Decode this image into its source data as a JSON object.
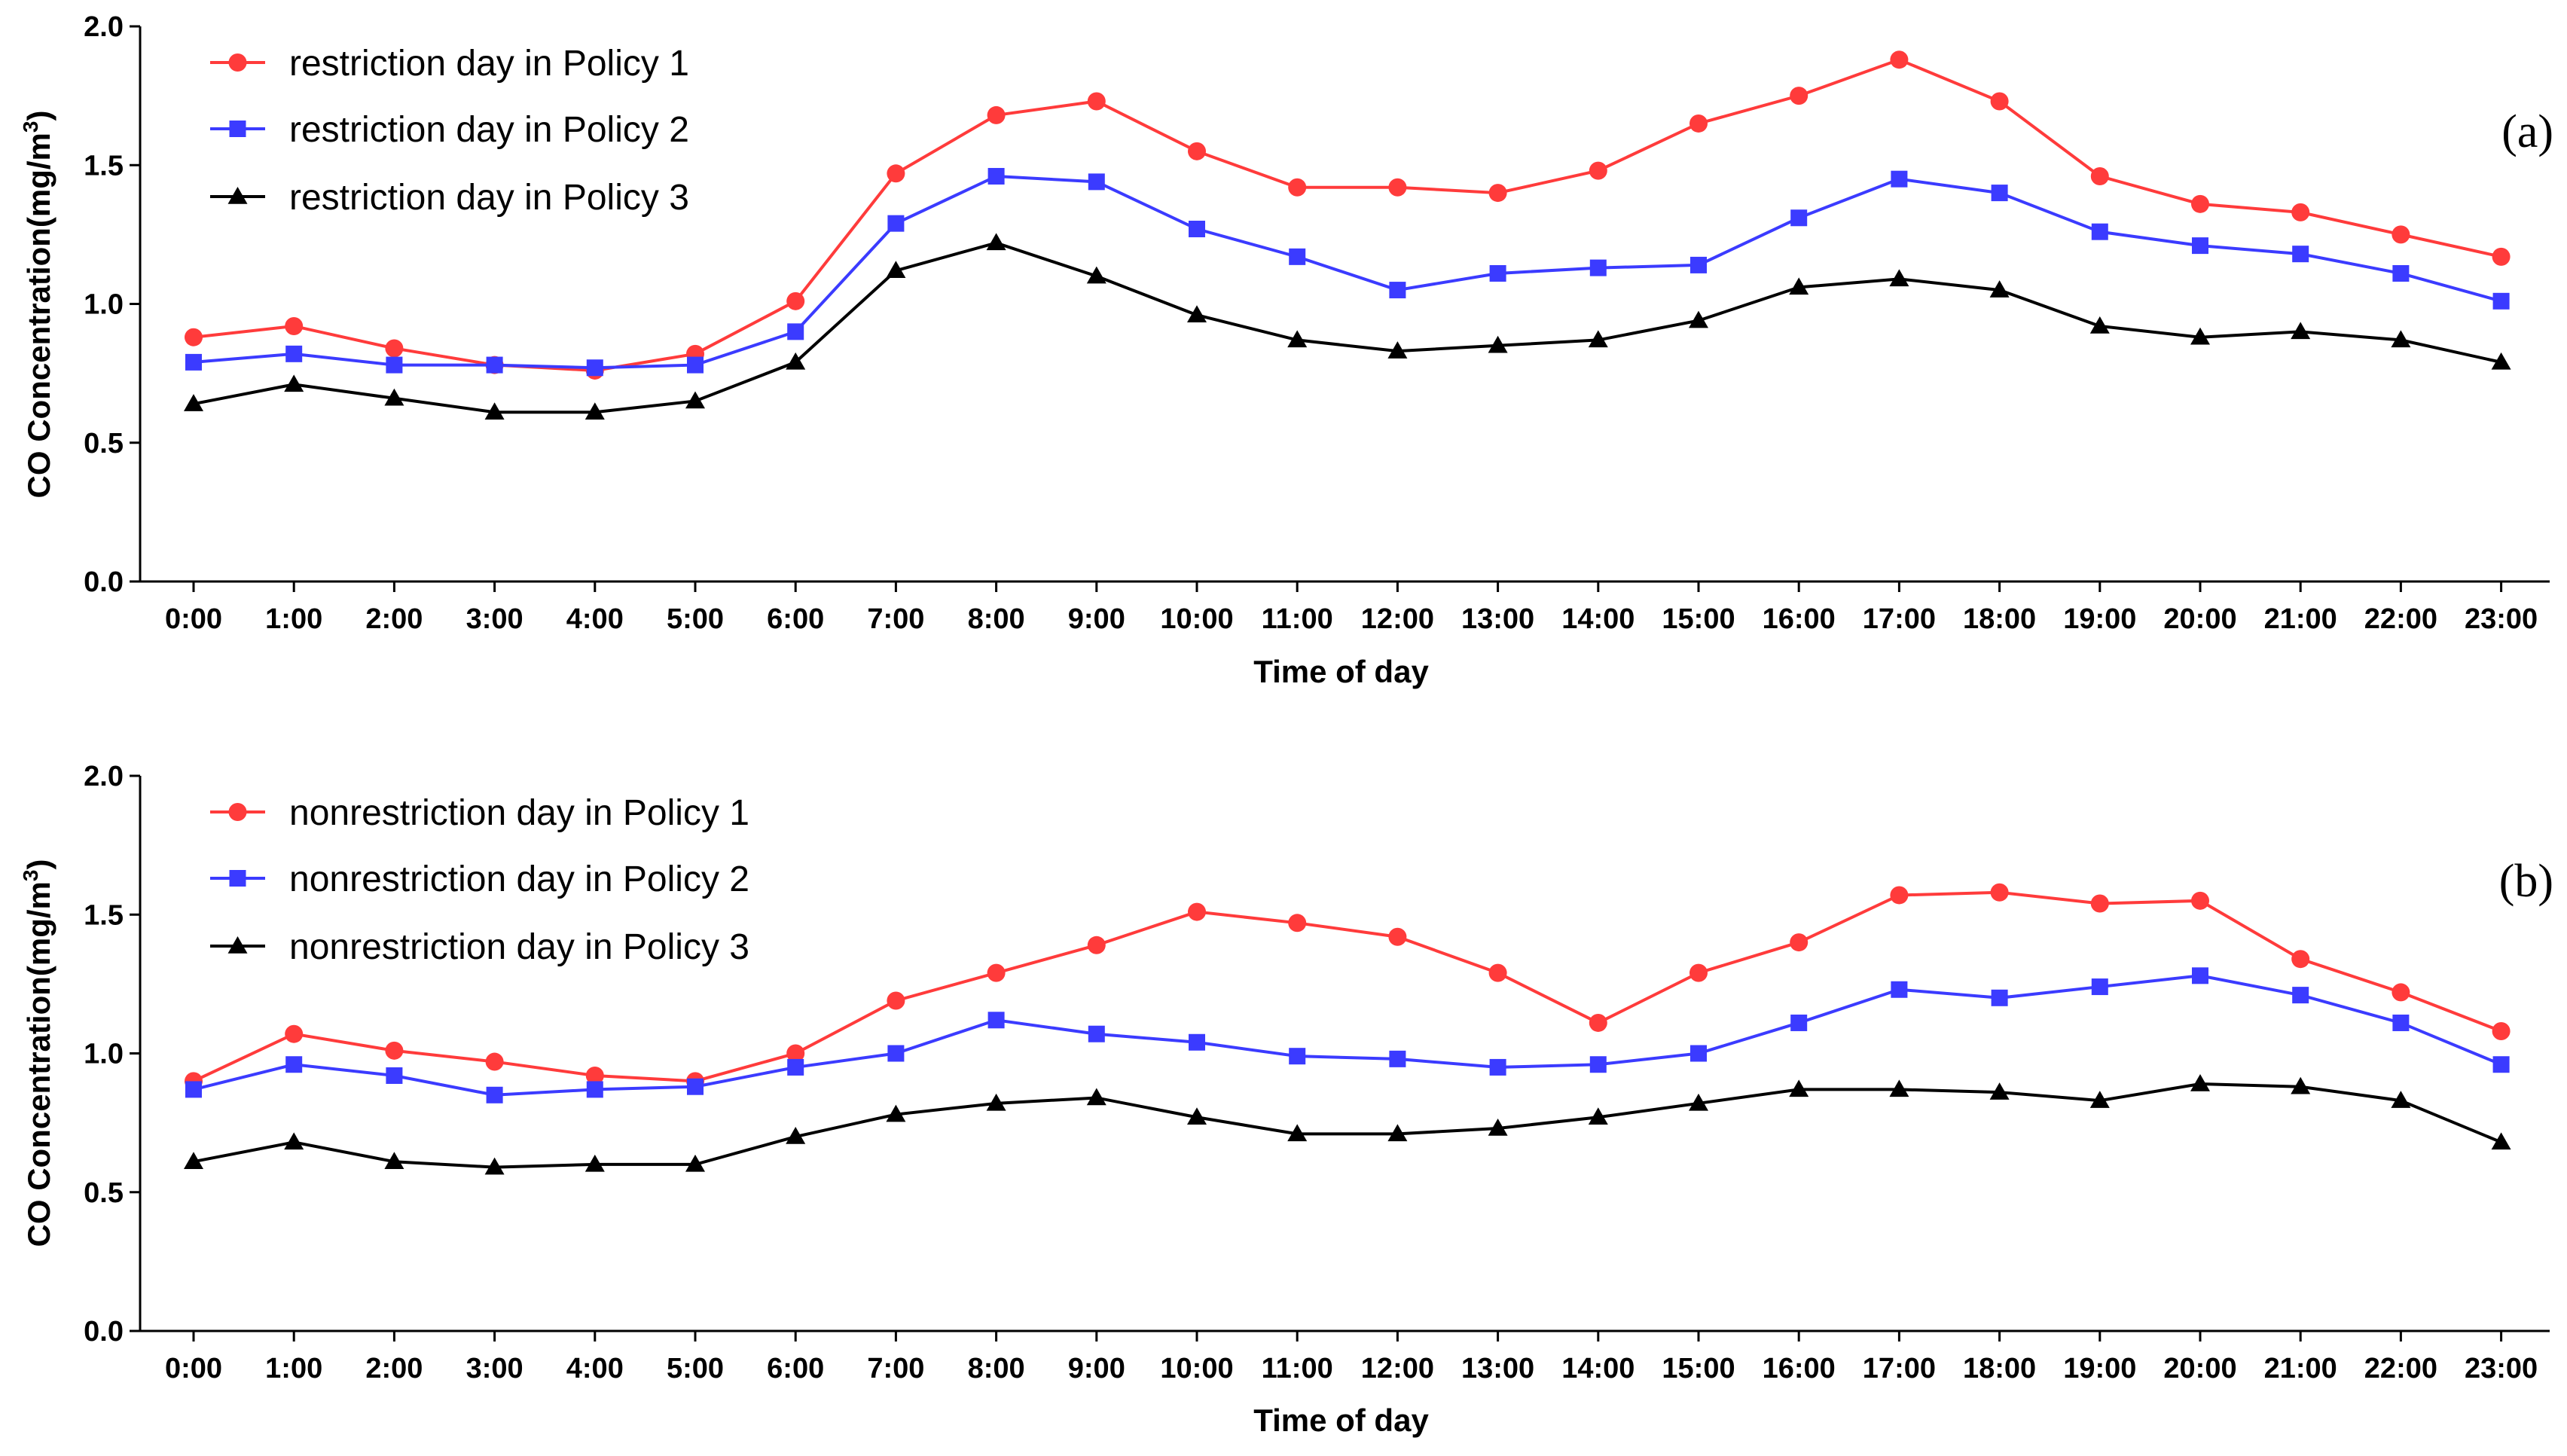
{
  "chart_data": [
    {
      "type": "line",
      "panel_label": "(a)",
      "xlabel": "Time of day",
      "ylabel": "CO Concentration(mg/m³)",
      "ylabel_base": "CO Concentration(mg/m",
      "ylabel_sup": "3",
      "ylabel_close": ")",
      "ylim": [
        0,
        2.0
      ],
      "yticks": [
        "0.0",
        "0.5",
        "1.0",
        "1.5",
        "2.0"
      ],
      "categories": [
        "0:00",
        "1:00",
        "2:00",
        "3:00",
        "4:00",
        "5:00",
        "6:00",
        "7:00",
        "8:00",
        "9:00",
        "10:00",
        "11:00",
        "12:00",
        "13:00",
        "14:00",
        "15:00",
        "16:00",
        "17:00",
        "18:00",
        "19:00",
        "20:00",
        "21:00",
        "22:00",
        "23:00"
      ],
      "series": [
        {
          "name": "restriction day in Policy 1",
          "color": "#ff3b3b",
          "marker": "circle",
          "values": [
            0.88,
            0.92,
            0.84,
            0.78,
            0.76,
            0.82,
            1.01,
            1.47,
            1.68,
            1.73,
            1.55,
            1.42,
            1.42,
            1.4,
            1.48,
            1.65,
            1.75,
            1.88,
            1.73,
            1.46,
            1.36,
            1.33,
            1.25,
            1.17
          ]
        },
        {
          "name": "restriction day in Policy 2",
          "color": "#3b3bff",
          "marker": "square",
          "values": [
            0.79,
            0.82,
            0.78,
            0.78,
            0.77,
            0.78,
            0.9,
            1.29,
            1.46,
            1.44,
            1.27,
            1.17,
            1.05,
            1.11,
            1.13,
            1.14,
            1.31,
            1.45,
            1.4,
            1.26,
            1.21,
            1.18,
            1.11,
            1.01
          ]
        },
        {
          "name": "restriction day in Policy 3",
          "color": "#000000",
          "marker": "triangle",
          "values": [
            0.64,
            0.71,
            0.66,
            0.61,
            0.61,
            0.65,
            0.79,
            1.12,
            1.22,
            1.1,
            0.96,
            0.87,
            0.83,
            0.85,
            0.87,
            0.94,
            1.06,
            1.09,
            1.05,
            0.92,
            0.88,
            0.9,
            0.87,
            0.79
          ]
        }
      ]
    },
    {
      "type": "line",
      "panel_label": "(b)",
      "xlabel": "Time of day",
      "ylabel": "CO Concentration(mg/m³)",
      "ylabel_base": "CO Concentration(mg/m",
      "ylabel_sup": "3",
      "ylabel_close": ")",
      "ylim": [
        0,
        2.0
      ],
      "yticks": [
        "0.0",
        "0.5",
        "1.0",
        "1.5",
        "2.0"
      ],
      "categories": [
        "0:00",
        "1:00",
        "2:00",
        "3:00",
        "4:00",
        "5:00",
        "6:00",
        "7:00",
        "8:00",
        "9:00",
        "10:00",
        "11:00",
        "12:00",
        "13:00",
        "14:00",
        "15:00",
        "16:00",
        "17:00",
        "18:00",
        "19:00",
        "20:00",
        "21:00",
        "22:00",
        "23:00"
      ],
      "series": [
        {
          "name": "nonrestriction day in Policy 1",
          "color": "#ff3b3b",
          "marker": "circle",
          "values": [
            0.9,
            1.07,
            1.01,
            0.97,
            0.92,
            0.9,
            1.0,
            1.19,
            1.29,
            1.39,
            1.51,
            1.47,
            1.42,
            1.29,
            1.11,
            1.29,
            1.4,
            1.57,
            1.58,
            1.54,
            1.55,
            1.34,
            1.22,
            1.08
          ]
        },
        {
          "name": "nonrestriction day in Policy 2",
          "color": "#3b3bff",
          "marker": "square",
          "values": [
            0.87,
            0.96,
            0.92,
            0.85,
            0.87,
            0.88,
            0.95,
            1.0,
            1.12,
            1.07,
            1.04,
            0.99,
            0.98,
            0.95,
            0.96,
            1.0,
            1.11,
            1.23,
            1.2,
            1.24,
            1.28,
            1.21,
            1.11,
            0.96
          ]
        },
        {
          "name": "nonrestriction day in Policy 3",
          "color": "#000000",
          "marker": "triangle",
          "values": [
            0.61,
            0.68,
            0.61,
            0.59,
            0.6,
            0.6,
            0.7,
            0.78,
            0.82,
            0.84,
            0.77,
            0.71,
            0.71,
            0.73,
            0.77,
            0.82,
            0.87,
            0.87,
            0.86,
            0.83,
            0.89,
            0.88,
            0.83,
            0.68
          ]
        }
      ]
    }
  ]
}
